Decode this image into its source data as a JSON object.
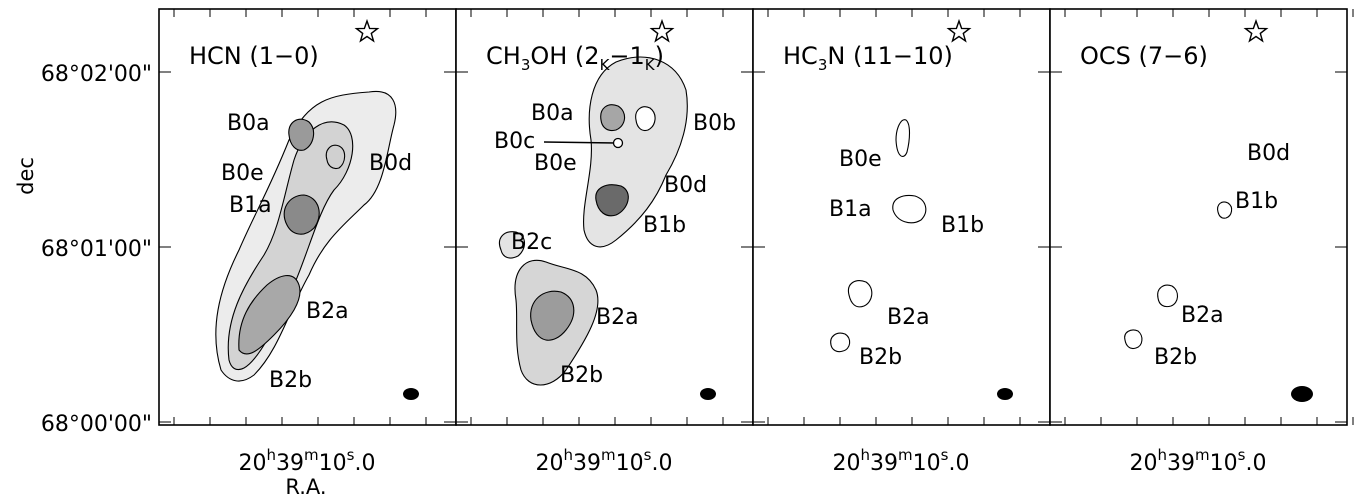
{
  "chart_data": {
    "type": "contour",
    "ylabel": "dec",
    "xlabel": "R.A.",
    "y_ticks": [
      "68°02'00\"",
      "68°01'00\"",
      "68°00'00\""
    ],
    "x_tick": {
      "h": "20",
      "m": "39",
      "s_int": "10",
      "s_frac": "0"
    },
    "panels": [
      {
        "title_parts": [
          "HCN (1−0)"
        ],
        "labels": [
          {
            "id": "B0a",
            "text": "B0a"
          },
          {
            "id": "B0e",
            "text": "B0e"
          },
          {
            "id": "B0d",
            "text": "B0d"
          },
          {
            "id": "B1a",
            "text": "B1a"
          },
          {
            "id": "B2a",
            "text": "B2a"
          },
          {
            "id": "B2b",
            "text": "B2b"
          }
        ]
      },
      {
        "title_parts": [
          "CH",
          "3",
          "OH (2",
          "K",
          "−1",
          "K",
          ")"
        ],
        "labels": [
          {
            "id": "B0a",
            "text": "B0a"
          },
          {
            "id": "B0c",
            "text": "B0c"
          },
          {
            "id": "B0e",
            "text": "B0e"
          },
          {
            "id": "B0b",
            "text": "B0b"
          },
          {
            "id": "B0d",
            "text": "B0d"
          },
          {
            "id": "B1b",
            "text": "B1b"
          },
          {
            "id": "B2c",
            "text": "B2c"
          },
          {
            "id": "B2a",
            "text": "B2a"
          },
          {
            "id": "B2b",
            "text": "B2b"
          }
        ]
      },
      {
        "title_parts": [
          "HC",
          "3",
          "N (11−10)"
        ],
        "labels": [
          {
            "id": "B0e",
            "text": "B0e"
          },
          {
            "id": "B1a",
            "text": "B1a"
          },
          {
            "id": "B1b",
            "text": "B1b"
          },
          {
            "id": "B2a",
            "text": "B2a"
          },
          {
            "id": "B2b",
            "text": "B2b"
          }
        ]
      },
      {
        "title_parts": [
          "OCS (7−6)"
        ],
        "labels": [
          {
            "id": "B0d",
            "text": "B0d"
          },
          {
            "id": "B1b",
            "text": "B1b"
          },
          {
            "id": "B2a",
            "text": "B2a"
          },
          {
            "id": "B2b",
            "text": "B2b"
          }
        ]
      }
    ]
  }
}
